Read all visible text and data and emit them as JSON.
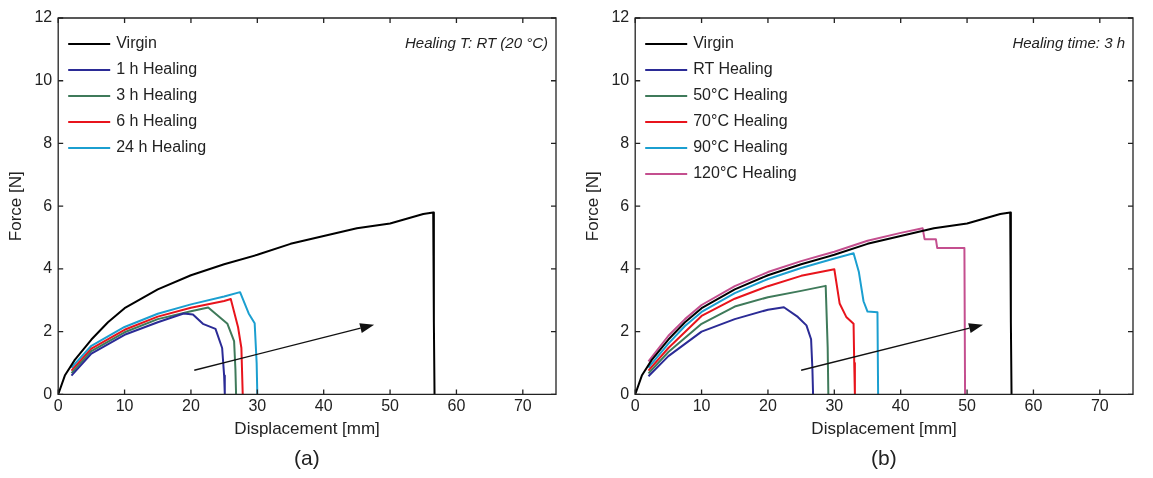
{
  "chart_data": [
    {
      "type": "line",
      "xlabel": "Displacement [mm]",
      "ylabel": "Force [N]",
      "xlim": [
        0,
        75
      ],
      "xticks": [
        0,
        10,
        20,
        30,
        40,
        50,
        60,
        70
      ],
      "ylim": [
        0,
        12
      ],
      "yticks": [
        0,
        2,
        4,
        6,
        8,
        10,
        12
      ],
      "legend": "top left",
      "annotations": [
        "Healing T: RT (20 °C)",
        "(a)"
      ],
      "series": [
        {
          "name": "Virgin",
          "color": "#000000",
          "x": [
            0,
            1,
            2.5,
            5,
            7.5,
            10,
            15,
            20,
            25,
            30,
            35,
            40,
            45,
            50,
            55,
            56.5,
            56.6,
            56.7
          ],
          "values": [
            0,
            0.6,
            1.1,
            1.75,
            2.3,
            2.75,
            3.35,
            3.8,
            4.15,
            4.45,
            4.8,
            5.05,
            5.3,
            5.45,
            5.75,
            5.8,
            2.3,
            0
          ]
        },
        {
          "name": "1 h Healing",
          "color": "#2b2b96",
          "x": [
            2,
            5,
            10,
            15,
            18.9,
            20.3,
            21.8,
            23.7,
            24.7,
            25,
            25.1
          ],
          "values": [
            0.6,
            1.3,
            1.9,
            2.3,
            2.58,
            2.55,
            2.25,
            2.09,
            1.48,
            0.6,
            0
          ]
        },
        {
          "name": "3 h Healing",
          "color": "#3f7a5a",
          "x": [
            2,
            5,
            10,
            15,
            20,
            22.6,
            25.5,
            26.5,
            26.7,
            26.8
          ],
          "values": [
            0.68,
            1.38,
            1.98,
            2.4,
            2.65,
            2.77,
            2.25,
            1.7,
            0.8,
            0
          ]
        },
        {
          "name": "6 h Healing",
          "color": "#e8141c",
          "x": [
            2,
            5,
            10,
            15,
            20,
            25,
            26,
            27.1,
            27.6,
            27.8
          ],
          "values": [
            0.76,
            1.46,
            2.06,
            2.48,
            2.76,
            2.98,
            3.04,
            2.14,
            1.48,
            0
          ]
        },
        {
          "name": "24 h Healing",
          "color": "#1b9fd0",
          "x": [
            2,
            5,
            10,
            15,
            20,
            25,
            27.4,
            28.7,
            29.6,
            29.9,
            30
          ],
          "values": [
            0.85,
            1.55,
            2.15,
            2.57,
            2.87,
            3.12,
            3.26,
            2.58,
            2.27,
            1.0,
            0
          ]
        }
      ]
    },
    {
      "type": "line",
      "xlabel": "Displacement [mm]",
      "ylabel": "Force [N]",
      "xlim": [
        0,
        75
      ],
      "xticks": [
        0,
        10,
        20,
        30,
        40,
        50,
        60,
        70
      ],
      "ylim": [
        0,
        12
      ],
      "yticks": [
        0,
        2,
        4,
        6,
        8,
        10,
        12
      ],
      "legend": "top left",
      "annotations": [
        "Healing time: 3 h",
        "(b)"
      ],
      "series": [
        {
          "name": "Virgin",
          "color": "#000000",
          "x": [
            0,
            1,
            2.5,
            5,
            7.5,
            10,
            15,
            20,
            25,
            30,
            35,
            40,
            45,
            50,
            55,
            56.5,
            56.6,
            56.7
          ],
          "values": [
            0,
            0.6,
            1.1,
            1.75,
            2.3,
            2.75,
            3.35,
            3.8,
            4.15,
            4.45,
            4.8,
            5.05,
            5.3,
            5.45,
            5.75,
            5.8,
            2.3,
            0
          ]
        },
        {
          "name": "RT Healing",
          "color": "#2b2b96",
          "x": [
            2,
            5,
            10,
            15,
            20,
            22.4,
            24.5,
            25.8,
            26.5,
            26.7,
            26.8
          ],
          "values": [
            0.58,
            1.22,
            2.0,
            2.4,
            2.7,
            2.78,
            2.47,
            2.2,
            1.76,
            0.8,
            0
          ]
        },
        {
          "name": "50°C Healing",
          "color": "#3f7a5a",
          "x": [
            2,
            5,
            10,
            15,
            20,
            25,
            28.7,
            29.0,
            29.1
          ],
          "values": [
            0.67,
            1.35,
            2.25,
            2.8,
            3.1,
            3.3,
            3.46,
            1.5,
            0
          ]
        },
        {
          "name": "70°C Healing",
          "color": "#e8141c",
          "x": [
            2,
            5,
            10,
            15,
            20,
            25,
            30,
            30.8,
            31.8,
            32.9,
            33.0,
            33.1
          ],
          "values": [
            0.76,
            1.48,
            2.5,
            3.05,
            3.45,
            3.78,
            3.99,
            2.9,
            2.47,
            2.25,
            1.0,
            0
          ]
        },
        {
          "name": "90°C Healing",
          "color": "#1b9fd0",
          "x": [
            2,
            5,
            7.5,
            10,
            15,
            20,
            25,
            30,
            32.9,
            33.7,
            34.4,
            35,
            36.5,
            36.6
          ],
          "values": [
            0.85,
            1.62,
            2.18,
            2.63,
            3.23,
            3.68,
            4.03,
            4.33,
            4.5,
            3.9,
            2.97,
            2.64,
            2.62,
            0
          ]
        },
        {
          "name": "120°C Healing",
          "color": "#c44f8f",
          "x": [
            2,
            5,
            7.5,
            10,
            15,
            20,
            25,
            30,
            35,
            40,
            43.3,
            43.6,
            45.3,
            45.5,
            49.6,
            49.7
          ],
          "values": [
            1.05,
            1.87,
            2.4,
            2.85,
            3.45,
            3.9,
            4.25,
            4.55,
            4.9,
            5.15,
            5.3,
            4.95,
            4.95,
            4.67,
            4.67,
            0
          ]
        }
      ]
    }
  ]
}
